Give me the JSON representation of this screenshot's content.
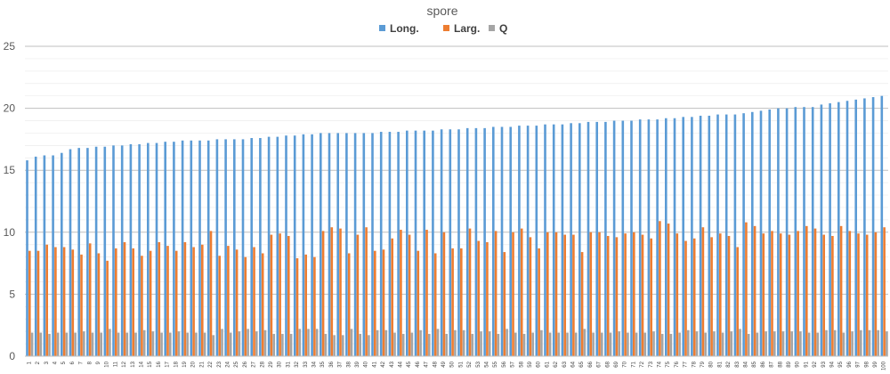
{
  "chart_data": {
    "type": "bar",
    "title": "spore",
    "xlabel": "",
    "ylabel": "",
    "ylim": [
      0,
      25
    ],
    "yticks": [
      0,
      5,
      10,
      15,
      20,
      25
    ],
    "grid": true,
    "legend_position": "top-center",
    "categories": [
      "1",
      "2",
      "3",
      "4",
      "5",
      "6",
      "7",
      "8",
      "9",
      "10",
      "11",
      "12",
      "13",
      "14",
      "15",
      "16",
      "17",
      "18",
      "19",
      "20",
      "21",
      "22",
      "23",
      "24",
      "25",
      "26",
      "27",
      "28",
      "29",
      "30",
      "31",
      "32",
      "33",
      "34",
      "35",
      "36",
      "37",
      "38",
      "39",
      "40",
      "41",
      "42",
      "43",
      "44",
      "45",
      "46",
      "47",
      "48",
      "49",
      "50",
      "51",
      "52",
      "53",
      "54",
      "55",
      "56",
      "57",
      "58",
      "59",
      "60",
      "61",
      "62",
      "63",
      "64",
      "65",
      "66",
      "67",
      "68",
      "69",
      "70",
      "71",
      "72",
      "73",
      "74",
      "75",
      "76",
      "77",
      "78",
      "79",
      "80",
      "81",
      "82",
      "83",
      "84",
      "85",
      "86",
      "87",
      "88",
      "89",
      "90",
      "91",
      "92",
      "93",
      "94",
      "95",
      "96",
      "97",
      "98",
      "99",
      "100"
    ],
    "series": [
      {
        "name": "Long.",
        "color": "#5b9bd5",
        "values": [
          15.8,
          16.1,
          16.2,
          16.2,
          16.4,
          16.7,
          16.8,
          16.8,
          16.9,
          16.9,
          17.0,
          17.0,
          17.1,
          17.1,
          17.2,
          17.2,
          17.3,
          17.3,
          17.4,
          17.4,
          17.4,
          17.4,
          17.5,
          17.5,
          17.5,
          17.5,
          17.6,
          17.6,
          17.7,
          17.7,
          17.8,
          17.8,
          17.9,
          17.9,
          18.0,
          18.0,
          18.0,
          18.0,
          18.0,
          18.0,
          18.0,
          18.1,
          18.1,
          18.1,
          18.2,
          18.2,
          18.2,
          18.2,
          18.3,
          18.3,
          18.3,
          18.4,
          18.4,
          18.4,
          18.5,
          18.5,
          18.5,
          18.6,
          18.6,
          18.6,
          18.7,
          18.7,
          18.7,
          18.8,
          18.8,
          18.9,
          18.9,
          18.9,
          19.0,
          19.0,
          19.0,
          19.1,
          19.1,
          19.1,
          19.2,
          19.2,
          19.3,
          19.3,
          19.4,
          19.4,
          19.5,
          19.5,
          19.5,
          19.6,
          19.7,
          19.8,
          19.9,
          20.0,
          20.0,
          20.1,
          20.1,
          20.1,
          20.3,
          20.4,
          20.5,
          20.6,
          20.7,
          20.8,
          20.9,
          21.0
        ]
      },
      {
        "name": "Larg.",
        "color": "#ed7d31",
        "values": [
          8.5,
          8.5,
          9.0,
          8.8,
          8.8,
          8.6,
          8.2,
          9.1,
          8.3,
          7.7,
          8.7,
          9.2,
          8.7,
          8.1,
          8.5,
          9.2,
          8.9,
          8.5,
          9.2,
          8.8,
          9.0,
          10.1,
          8.1,
          8.9,
          8.6,
          8.0,
          8.8,
          8.3,
          9.8,
          9.9,
          9.7,
          7.9,
          8.2,
          8.0,
          10.1,
          10.4,
          10.3,
          8.3,
          9.8,
          10.4,
          8.5,
          8.6,
          9.5,
          10.2,
          9.8,
          8.5,
          10.2,
          8.3,
          10.0,
          8.7,
          8.7,
          10.3,
          9.3,
          9.2,
          10.1,
          8.4,
          10.0,
          10.3,
          9.6,
          8.7,
          10.0,
          10.0,
          9.8,
          9.8,
          8.4,
          10.0,
          10.0,
          9.7,
          9.6,
          9.9,
          10.0,
          9.8,
          9.5,
          10.9,
          10.7,
          9.9,
          9.3,
          9.5,
          10.4,
          9.6,
          9.9,
          9.7,
          8.8,
          10.8,
          10.5,
          9.9,
          10.1,
          9.9,
          9.8,
          10.1,
          10.5,
          10.3,
          9.8,
          9.7,
          10.5,
          10.1,
          9.9,
          9.8,
          10.0,
          10.4
        ]
      },
      {
        "name": "Q",
        "color": "#a5a5a5",
        "values": [
          1.9,
          1.9,
          1.8,
          1.9,
          1.9,
          1.9,
          2.0,
          1.9,
          1.9,
          2.2,
          1.9,
          1.9,
          1.9,
          2.1,
          2.0,
          1.9,
          1.9,
          2.0,
          1.9,
          1.9,
          1.9,
          1.7,
          2.2,
          1.9,
          2.0,
          2.2,
          2.0,
          2.1,
          1.8,
          1.8,
          1.8,
          2.2,
          2.2,
          2.2,
          1.8,
          1.7,
          1.7,
          2.2,
          1.8,
          1.7,
          2.1,
          2.1,
          1.9,
          1.8,
          1.9,
          2.1,
          1.8,
          2.2,
          1.8,
          2.1,
          2.1,
          1.8,
          2.0,
          2.0,
          1.8,
          2.2,
          1.9,
          1.8,
          1.9,
          2.1,
          1.9,
          1.9,
          1.9,
          1.9,
          2.2,
          1.9,
          1.9,
          1.9,
          2.0,
          1.9,
          1.9,
          1.9,
          2.0,
          1.8,
          1.8,
          1.9,
          2.1,
          2.0,
          1.9,
          2.0,
          1.9,
          2.0,
          2.2,
          1.8,
          1.9,
          2.0,
          2.0,
          2.0,
          2.0,
          2.0,
          1.9,
          1.9,
          2.1,
          2.1,
          1.9,
          2.0,
          2.1,
          2.1,
          2.1,
          2.0
        ]
      }
    ]
  }
}
